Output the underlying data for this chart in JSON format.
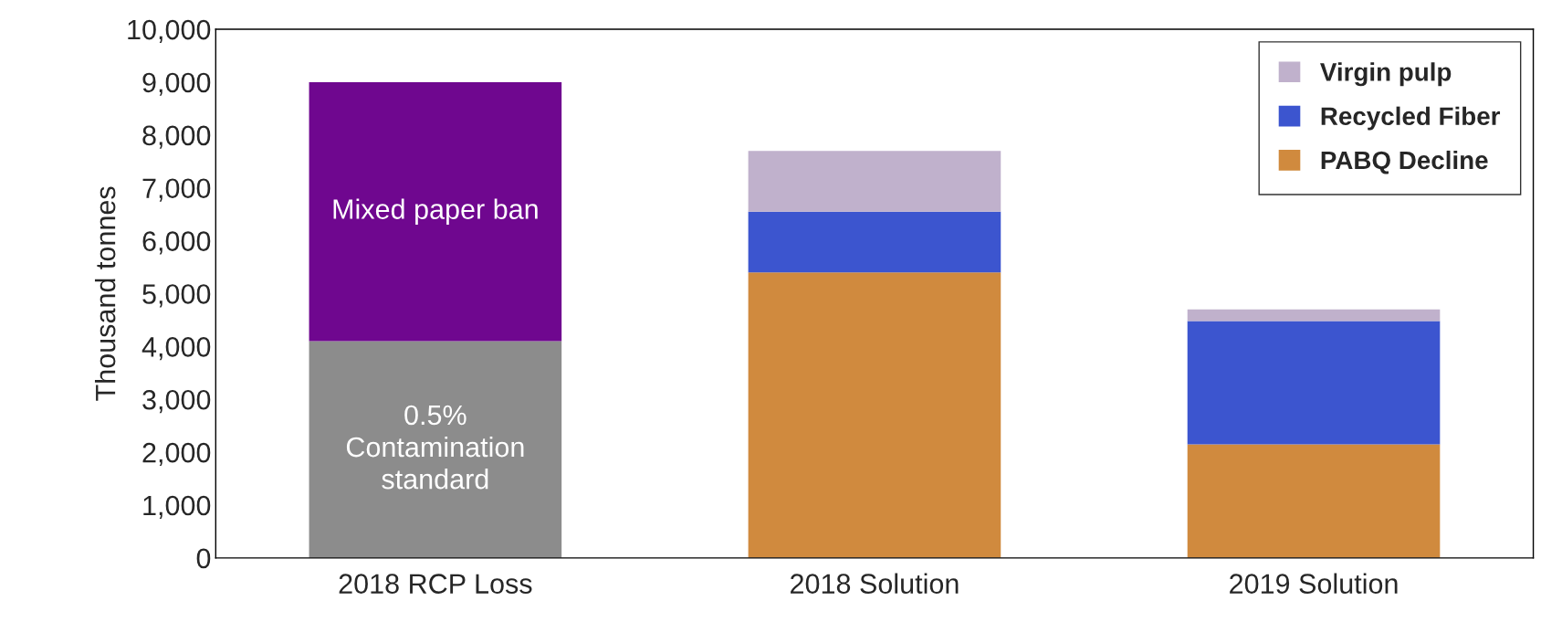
{
  "chart_data": {
    "type": "bar",
    "stacked": true,
    "ylabel": "Thousand tonnes",
    "categories": [
      "2018 RCP Loss",
      "2018 Solution",
      "2019 Solution"
    ],
    "series": [
      {
        "color": "#8c8c8c",
        "values": [
          4100,
          null,
          null
        ]
      },
      {
        "color": "#6f078f",
        "values": [
          4900,
          null,
          null
        ]
      },
      {
        "name": "PABQ Decline",
        "color": "#d08a3e",
        "values": [
          null,
          5400,
          2150
        ]
      },
      {
        "name": "Recycled Fiber",
        "color": "#3c55cf",
        "values": [
          null,
          1150,
          2330
        ]
      },
      {
        "name": "Virgin pulp",
        "color": "#c0b1cc",
        "values": [
          null,
          1150,
          220
        ]
      }
    ],
    "annotations": [
      "0.5%\nContamination\nstandard",
      "Mixed paper ban"
    ],
    "ylim": [
      0,
      10000
    ],
    "yticks": [
      0,
      {
        "value": 1000,
        "label": "1,000"
      },
      {
        "value": 2000,
        "label": "2,000"
      },
      {
        "value": 3000,
        "label": "3,000"
      },
      {
        "value": 4000,
        "label": "4,000"
      },
      {
        "value": 5000,
        "label": "5,000"
      },
      {
        "value": 6000,
        "label": "6,000"
      },
      {
        "value": 7000,
        "label": "7,000"
      },
      {
        "value": 8000,
        "label": "8,000"
      },
      {
        "value": 9000,
        "label": "9,000"
      },
      {
        "value": 10000,
        "label": "10,000"
      }
    ],
    "legend": "top right",
    "grid": false
  }
}
